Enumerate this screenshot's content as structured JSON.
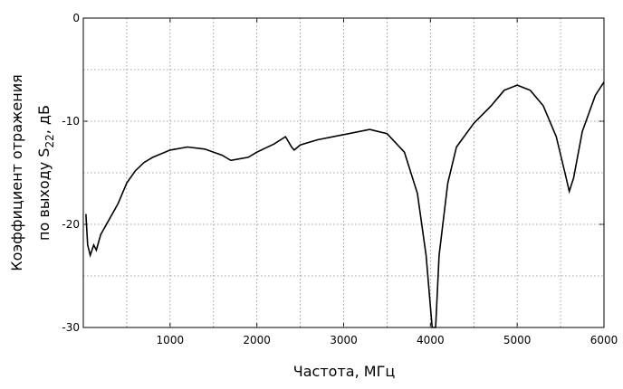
{
  "chart_data": {
    "type": "line",
    "x_label": "Частота, МГц",
    "y_label": {
      "line1": "Коэффициент отражения",
      "line2": "по выходу S",
      "subscript": "22",
      "suffix": ", дБ"
    },
    "x": [
      30,
      50,
      80,
      120,
      150,
      200,
      300,
      400,
      500,
      600,
      700,
      800,
      1000,
      1200,
      1400,
      1600,
      1700,
      1900,
      2000,
      2200,
      2330,
      2400,
      2430,
      2500,
      2700,
      3000,
      3300,
      3500,
      3700,
      3850,
      3950,
      4020,
      4060,
      4100,
      4200,
      4300,
      4500,
      4700,
      4850,
      5000,
      5150,
      5300,
      5450,
      5550,
      5600,
      5650,
      5750,
      5900,
      6000
    ],
    "series": [
      {
        "color": "#000000",
        "values": [
          -19,
          -22,
          -23,
          -22,
          -22.5,
          -21,
          -19.5,
          -18,
          -16,
          -14.8,
          -14,
          -13.5,
          -12.8,
          -12.5,
          -12.7,
          -13.3,
          -13.8,
          -13.5,
          -13,
          -12.2,
          -11.5,
          -12.5,
          -12.8,
          -12.3,
          -11.8,
          -11.3,
          -10.8,
          -11.2,
          -13,
          -17,
          -23,
          -30,
          -30,
          -23,
          -16,
          -12.5,
          -10.2,
          -8.5,
          -7,
          -6.5,
          -7,
          -8.5,
          -11.5,
          -15,
          -16.8,
          -15.5,
          -11,
          -7.5,
          -6.2
        ]
      }
    ],
    "xlim": [
      0,
      6000
    ],
    "xticks": [
      1000,
      2000,
      3000,
      4000,
      5000,
      6000
    ],
    "ylim": [
      -30,
      0
    ],
    "yticks": [
      -30,
      -20,
      -10,
      0
    ],
    "grid": true
  }
}
